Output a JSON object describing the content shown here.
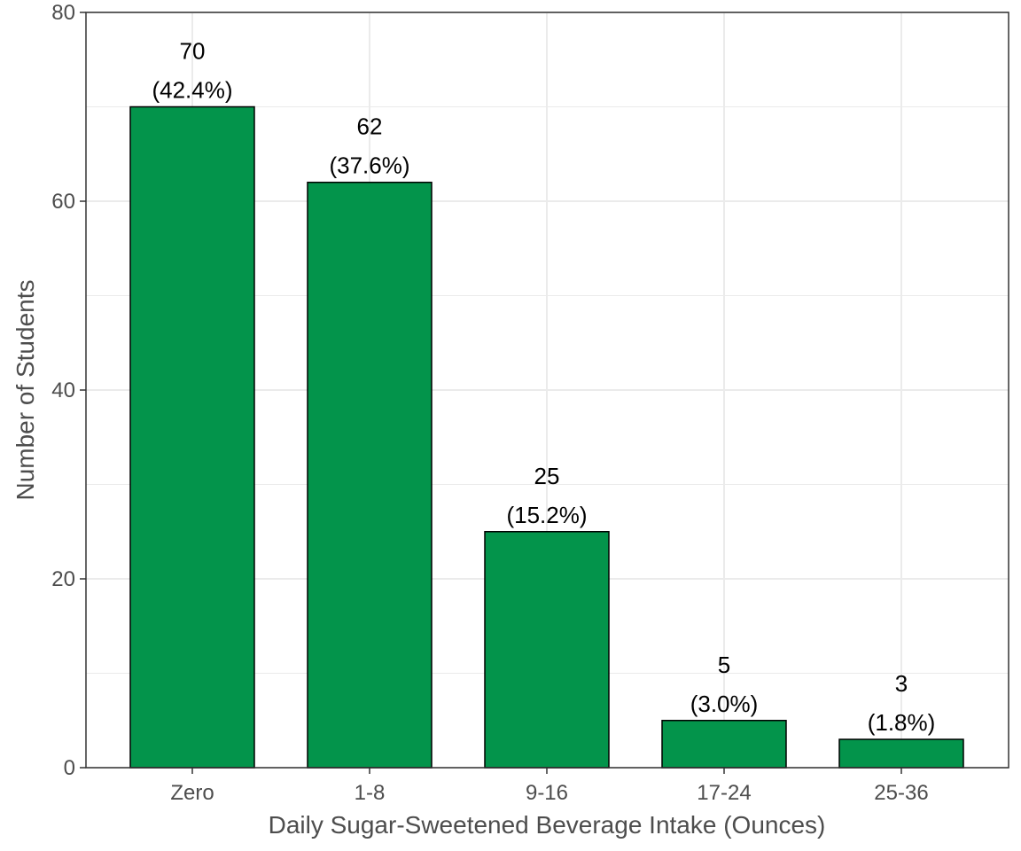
{
  "chart_data": {
    "type": "bar",
    "categories": [
      "Zero",
      "1-8",
      "9-16",
      "17-24",
      "25-36"
    ],
    "values": [
      70,
      62,
      25,
      5,
      3
    ],
    "percent_labels": [
      "(42.4%)",
      "(37.6%)",
      "(15.2%)",
      "(3.0%)",
      "(1.8%)"
    ],
    "title": "",
    "xlabel": "Daily Sugar-Sweetened Beverage Intake (Ounces)",
    "ylabel": "Number of Students",
    "ylim": [
      0,
      80
    ],
    "yticks": [
      0,
      20,
      40,
      60,
      80
    ],
    "grid": true,
    "bar_color": "#03944b",
    "grid_color": "#ebebeb"
  }
}
